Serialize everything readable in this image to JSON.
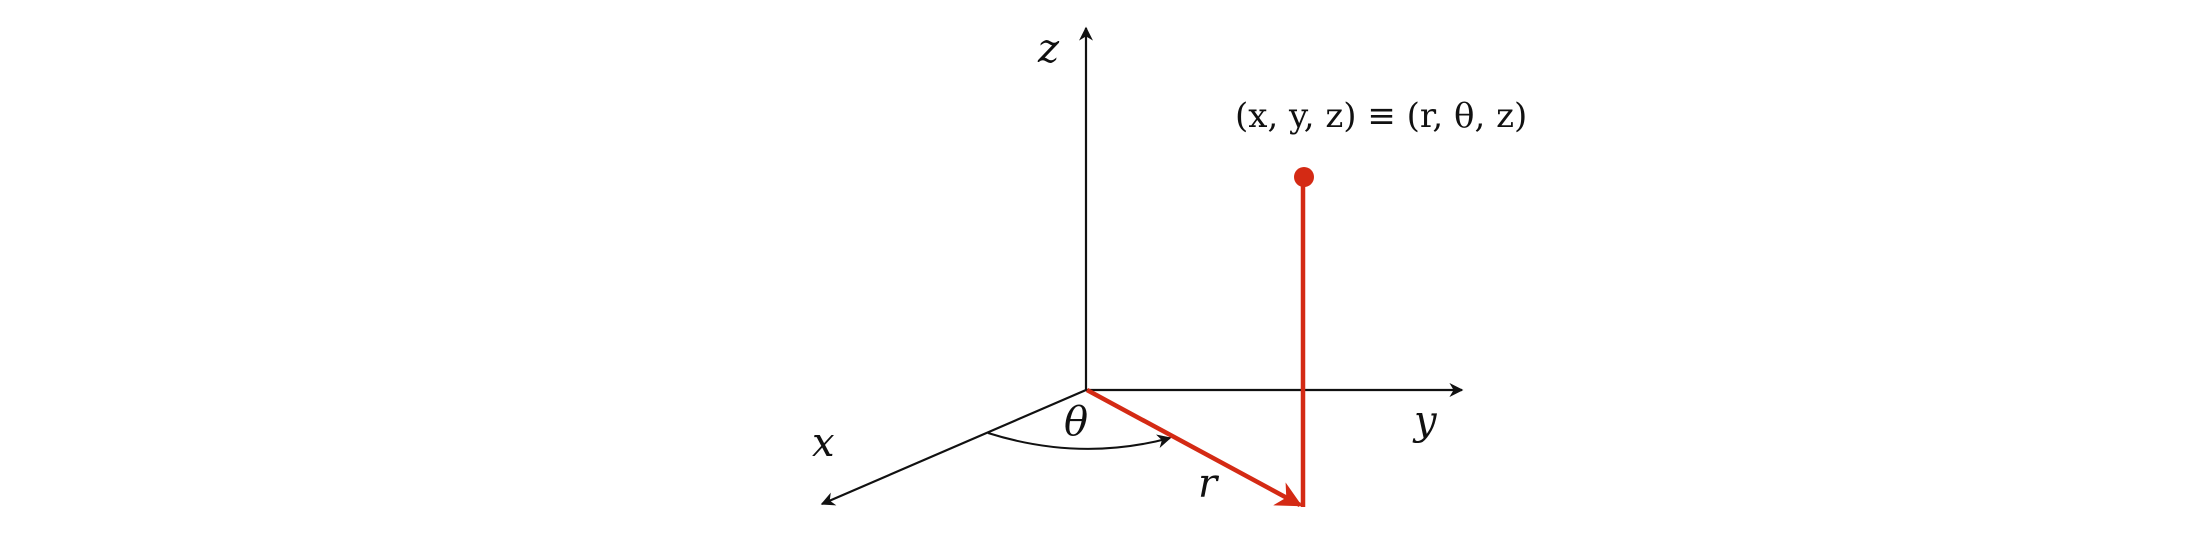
{
  "diagram": {
    "axis_labels": {
      "x": "x",
      "y": "y",
      "z": "z"
    },
    "angle_label": "θ",
    "radius_label": "r",
    "point_label": "(x, y, z) ≡ (r, θ, z)",
    "colors": {
      "axes": "#111111",
      "highlight": "#d42a14"
    }
  }
}
